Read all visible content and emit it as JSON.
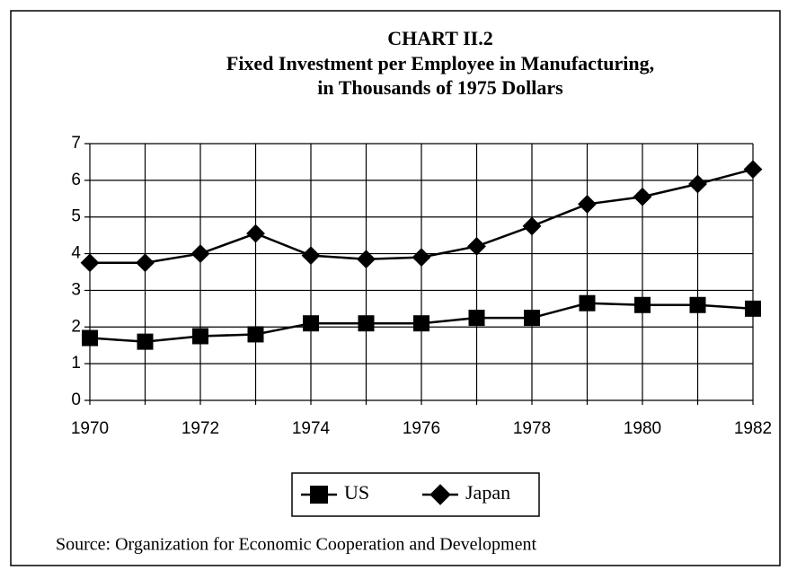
{
  "chart_data": {
    "type": "line",
    "title": "CHART II.2",
    "subtitle": [
      "Fixed Investment per Employee in Manufacturing,",
      "in Thousands of 1975  Dollars"
    ],
    "x": [
      1970,
      1971,
      1972,
      1973,
      1974,
      1975,
      1976,
      1977,
      1978,
      1979,
      1980,
      1981,
      1982
    ],
    "series": [
      {
        "name": "US",
        "color": "#000000",
        "marker": "square",
        "values": [
          1.7,
          1.6,
          1.75,
          1.8,
          2.1,
          2.1,
          2.1,
          2.25,
          2.25,
          2.65,
          2.6,
          2.6,
          2.5
        ]
      },
      {
        "name": "Japan",
        "color": "#000000",
        "marker": "diamond",
        "values": [
          3.75,
          3.75,
          4.0,
          4.55,
          3.95,
          3.85,
          3.9,
          4.2,
          4.75,
          5.35,
          5.55,
          5.9,
          6.3
        ]
      }
    ],
    "xlim": [
      1970,
      1982
    ],
    "xticks": [
      1970,
      1972,
      1974,
      1976,
      1978,
      1980,
      1982
    ],
    "ylim": [
      0,
      7
    ],
    "yticks": [
      0,
      1,
      2,
      3,
      4,
      5,
      6,
      7
    ],
    "grid": true,
    "legend": "bottom",
    "source": "Source: Organization for Economic Cooperation and Development"
  }
}
